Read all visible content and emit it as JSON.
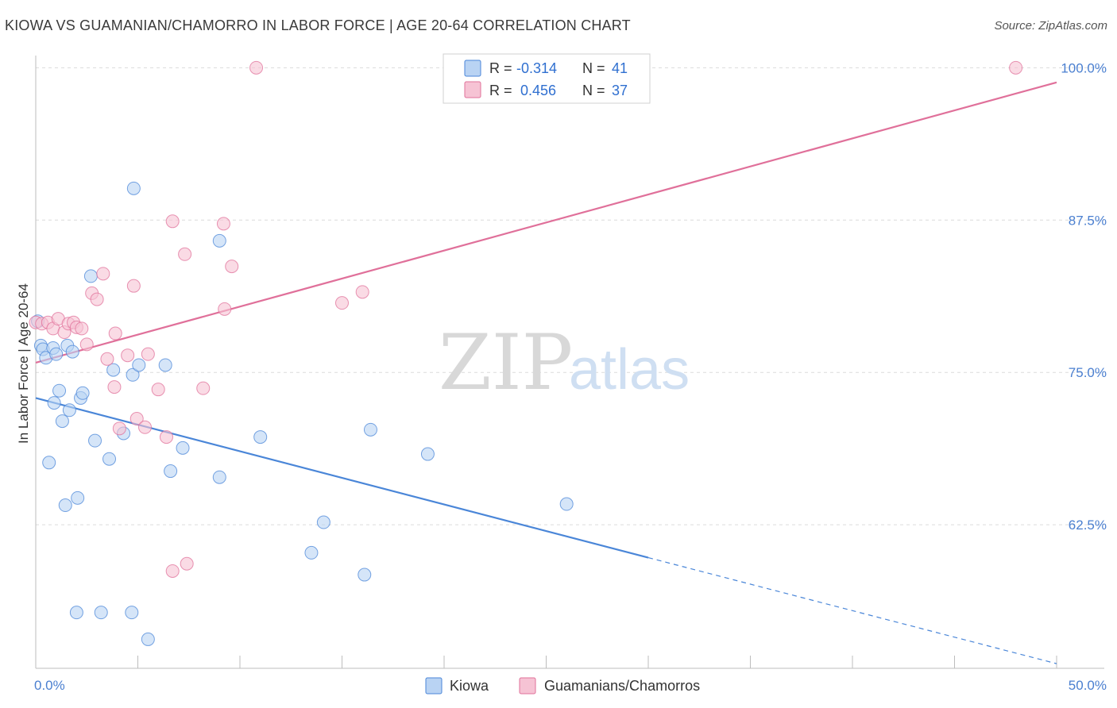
{
  "title": "KIOWA VS GUAMANIAN/CHAMORRO IN LABOR FORCE | AGE 20-64 CORRELATION CHART",
  "source": "Source: ZipAtlas.com",
  "watermark": {
    "zip": "ZIP",
    "atlas": "atlas"
  },
  "colors": {
    "kiowa": "#4a86d8",
    "kiowa_fill": "#b9d3f3",
    "guam": "#e0709a",
    "guam_fill": "#f6c3d4",
    "grid": "#dcdcdc"
  },
  "legend_top": [
    {
      "r_label": "R =",
      "r_value": "-0.314",
      "n_label": "N =",
      "n_value": "41"
    },
    {
      "r_label": "R =",
      "r_value": "0.456",
      "n_label": "N =",
      "n_value": "37"
    }
  ],
  "chart_data": {
    "type": "scatter",
    "title": "KIOWA VS GUAMANIAN/CHAMORRO IN LABOR FORCE | AGE 20-64 CORRELATION CHART",
    "xlabel": "",
    "ylabel": "In Labor Force | Age 20-64",
    "xlim": [
      0,
      50
    ],
    "ylim": [
      51.5,
      101
    ],
    "x_tick_labels": [
      "0.0%",
      "50.0%"
    ],
    "y_ticks": [
      62.5,
      75.0,
      87.5,
      100.0
    ],
    "y_tick_labels": [
      "62.5%",
      "75.0%",
      "87.5%",
      "100.0%"
    ],
    "grid": true,
    "legend_position": "top-center",
    "series": [
      {
        "name": "Kiowa",
        "color": "#4a86d8",
        "trend": {
          "x0": 0,
          "y0": 72.9,
          "x1": 30,
          "y1": 59.8,
          "dashed_to_x": 50,
          "dashed_to_y": 51.1
        },
        "points": [
          [
            0.1,
            79.2
          ],
          [
            0.25,
            77.2
          ],
          [
            0.35,
            76.9
          ],
          [
            0.5,
            76.2
          ],
          [
            0.65,
            67.6
          ],
          [
            0.85,
            77.0
          ],
          [
            0.9,
            72.5
          ],
          [
            1.0,
            76.5
          ],
          [
            1.15,
            73.5
          ],
          [
            1.3,
            71.0
          ],
          [
            1.45,
            64.1
          ],
          [
            1.55,
            77.2
          ],
          [
            1.65,
            71.9
          ],
          [
            1.8,
            76.7
          ],
          [
            2.0,
            55.3
          ],
          [
            2.05,
            64.7
          ],
          [
            2.2,
            72.9
          ],
          [
            2.3,
            73.3
          ],
          [
            2.7,
            82.9
          ],
          [
            2.9,
            69.4
          ],
          [
            3.2,
            55.3
          ],
          [
            3.6,
            67.9
          ],
          [
            3.8,
            75.2
          ],
          [
            4.3,
            70.0
          ],
          [
            4.7,
            55.3
          ],
          [
            4.75,
            74.8
          ],
          [
            4.8,
            90.1
          ],
          [
            5.05,
            75.6
          ],
          [
            5.5,
            53.1
          ],
          [
            6.35,
            75.6
          ],
          [
            6.6,
            66.9
          ],
          [
            7.2,
            68.8
          ],
          [
            9.0,
            85.8
          ],
          [
            9.0,
            66.4
          ],
          [
            11.0,
            69.7
          ],
          [
            13.5,
            60.2
          ],
          [
            14.1,
            62.7
          ],
          [
            16.1,
            58.4
          ],
          [
            16.4,
            70.3
          ],
          [
            19.2,
            68.3
          ],
          [
            26.0,
            64.2
          ]
        ]
      },
      {
        "name": "Guamanians/Chamorros",
        "color": "#e0709a",
        "trend": {
          "x0": 0,
          "y0": 75.8,
          "x1": 50,
          "y1": 98.8
        },
        "points": [
          [
            0.0,
            79.1
          ],
          [
            0.3,
            79.0
          ],
          [
            0.6,
            79.1
          ],
          [
            0.85,
            78.6
          ],
          [
            1.1,
            79.4
          ],
          [
            1.4,
            78.3
          ],
          [
            1.6,
            79.0
          ],
          [
            1.85,
            79.1
          ],
          [
            2.0,
            78.7
          ],
          [
            2.25,
            78.6
          ],
          [
            2.5,
            77.3
          ],
          [
            2.75,
            81.5
          ],
          [
            3.0,
            81.0
          ],
          [
            3.3,
            83.1
          ],
          [
            3.5,
            76.1
          ],
          [
            3.85,
            73.8
          ],
          [
            3.9,
            78.2
          ],
          [
            4.1,
            70.4
          ],
          [
            4.5,
            76.4
          ],
          [
            4.8,
            82.1
          ],
          [
            4.95,
            71.2
          ],
          [
            5.35,
            70.5
          ],
          [
            5.5,
            76.5
          ],
          [
            6.0,
            73.6
          ],
          [
            6.4,
            69.7
          ],
          [
            6.7,
            58.7
          ],
          [
            6.7,
            87.4
          ],
          [
            7.3,
            84.7
          ],
          [
            7.4,
            59.3
          ],
          [
            8.2,
            73.7
          ],
          [
            9.2,
            87.2
          ],
          [
            9.25,
            80.2
          ],
          [
            9.6,
            83.7
          ],
          [
            10.8,
            100.0
          ],
          [
            15.0,
            80.7
          ],
          [
            16.0,
            81.6
          ],
          [
            48.0,
            100.0
          ]
        ]
      }
    ]
  },
  "bottom_legend": [
    {
      "label": "Kiowa"
    },
    {
      "label": "Guamanians/Chamorros"
    }
  ]
}
